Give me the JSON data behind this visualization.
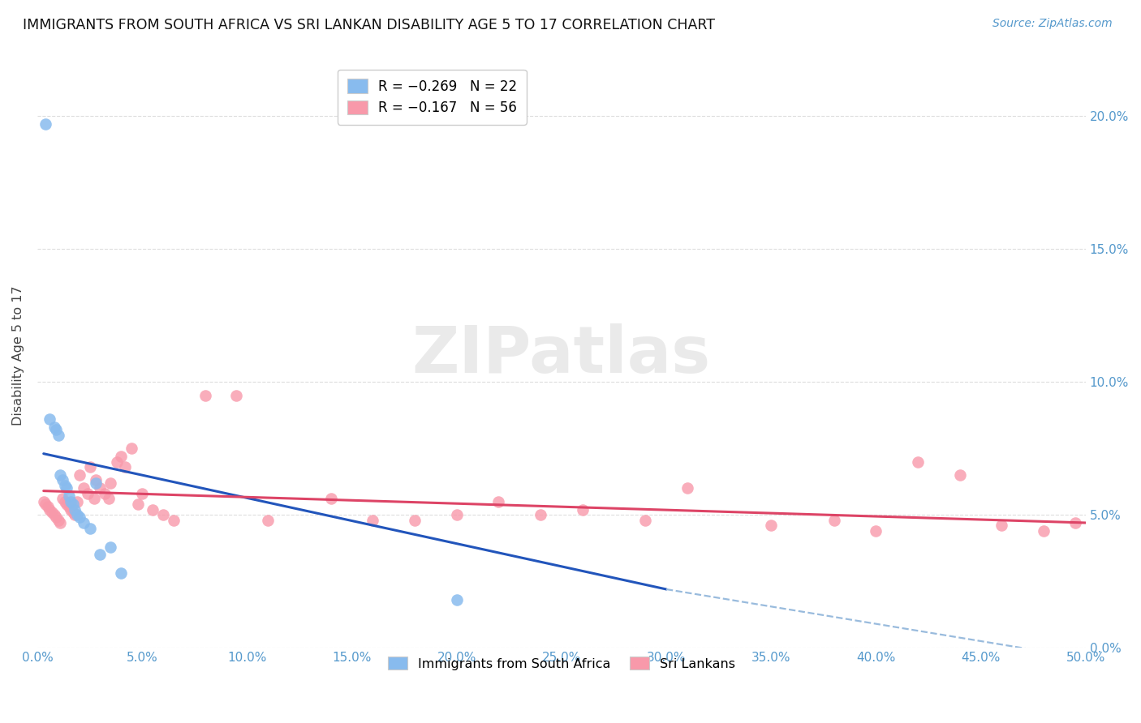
{
  "title": "IMMIGRANTS FROM SOUTH AFRICA VS SRI LANKAN DISABILITY AGE 5 TO 17 CORRELATION CHART",
  "source": "Source: ZipAtlas.com",
  "ylabel": "Disability Age 5 to 17",
  "xlim": [
    0.0,
    0.5
  ],
  "ylim": [
    0.0,
    0.22
  ],
  "xticks": [
    0.0,
    0.05,
    0.1,
    0.15,
    0.2,
    0.25,
    0.3,
    0.35,
    0.4,
    0.45,
    0.5
  ],
  "yticks": [
    0.0,
    0.05,
    0.1,
    0.15,
    0.2
  ],
  "background_color": "#ffffff",
  "grid_color": "#dddddd",
  "watermark_text": "ZIPatlas",
  "sa_color": "#88bbee",
  "sl_color": "#f899aa",
  "sa_trend_color": "#2255bb",
  "sl_trend_color": "#dd4466",
  "sa_trend_dashed_color": "#99bbdd",
  "sa_trend_start_x": 0.003,
  "sa_trend_start_y": 0.073,
  "sa_trend_solid_end_x": 0.3,
  "sa_trend_solid_end_y": 0.022,
  "sa_trend_dashed_end_x": 0.5,
  "sa_trend_dashed_end_y": -0.004,
  "sl_trend_start_x": 0.003,
  "sl_trend_start_y": 0.059,
  "sl_trend_end_x": 0.5,
  "sl_trend_end_y": 0.047,
  "south_africa_x": [
    0.004,
    0.006,
    0.008,
    0.009,
    0.01,
    0.011,
    0.012,
    0.013,
    0.014,
    0.015,
    0.016,
    0.017,
    0.018,
    0.019,
    0.02,
    0.022,
    0.025,
    0.028,
    0.03,
    0.035,
    0.04,
    0.2
  ],
  "south_africa_y": [
    0.197,
    0.086,
    0.083,
    0.082,
    0.08,
    0.065,
    0.063,
    0.061,
    0.06,
    0.057,
    0.055,
    0.054,
    0.052,
    0.05,
    0.049,
    0.047,
    0.045,
    0.062,
    0.035,
    0.038,
    0.028,
    0.018
  ],
  "sri_lanka_x": [
    0.003,
    0.004,
    0.005,
    0.006,
    0.007,
    0.008,
    0.009,
    0.01,
    0.011,
    0.012,
    0.013,
    0.014,
    0.015,
    0.016,
    0.017,
    0.018,
    0.019,
    0.02,
    0.022,
    0.024,
    0.025,
    0.027,
    0.028,
    0.03,
    0.032,
    0.034,
    0.035,
    0.038,
    0.04,
    0.042,
    0.045,
    0.048,
    0.05,
    0.055,
    0.06,
    0.065,
    0.08,
    0.095,
    0.11,
    0.14,
    0.16,
    0.18,
    0.2,
    0.22,
    0.24,
    0.26,
    0.29,
    0.31,
    0.35,
    0.38,
    0.4,
    0.42,
    0.44,
    0.46,
    0.48,
    0.495
  ],
  "sri_lanka_y": [
    0.055,
    0.054,
    0.053,
    0.052,
    0.051,
    0.05,
    0.049,
    0.048,
    0.047,
    0.056,
    0.055,
    0.054,
    0.053,
    0.052,
    0.051,
    0.05,
    0.055,
    0.065,
    0.06,
    0.058,
    0.068,
    0.056,
    0.063,
    0.06,
    0.058,
    0.056,
    0.062,
    0.07,
    0.072,
    0.068,
    0.075,
    0.054,
    0.058,
    0.052,
    0.05,
    0.048,
    0.095,
    0.095,
    0.048,
    0.056,
    0.048,
    0.048,
    0.05,
    0.055,
    0.05,
    0.052,
    0.048,
    0.06,
    0.046,
    0.048,
    0.044,
    0.07,
    0.065,
    0.046,
    0.044,
    0.047
  ]
}
